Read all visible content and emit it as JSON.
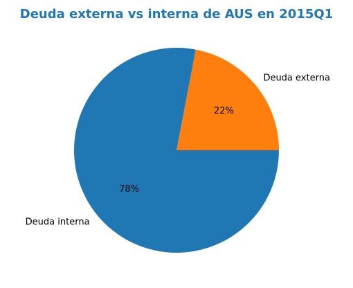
{
  "chart_data": {
    "type": "pie",
    "title": "Deuda externa vs interna de AUS en 2015Q1",
    "title_color": "#1f77b4",
    "slices": [
      {
        "label": "Deuda externa",
        "value": 22,
        "pct_label": "22%",
        "color": "#ff7f0e"
      },
      {
        "label": "Deuda interna",
        "value": 78,
        "pct_label": "78%",
        "color": "#1f77b4"
      }
    ]
  }
}
